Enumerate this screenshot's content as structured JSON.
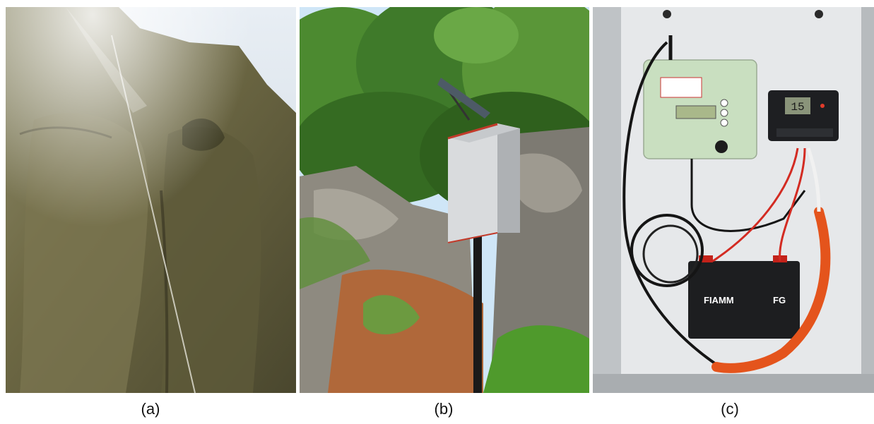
{
  "figure": {
    "panels": [
      {
        "id": "a",
        "caption": "(a)",
        "content": "cliff-photo"
      },
      {
        "id": "b",
        "caption": "(b)",
        "content": "pole-mounted-enclosure-photo"
      },
      {
        "id": "c",
        "caption": "(c)",
        "content": "open-enclosure-electronics-photo"
      }
    ],
    "device": {
      "lcd_reading": "15",
      "battery_brand": "FIAMM",
      "battery_series": "FG"
    },
    "colors": {
      "rock": "#6f6a45",
      "foliage": "#3f7a2a",
      "sky": "#cfe6f7",
      "enclosure": "#e6e8ea",
      "logger_green": "#c9dfc0",
      "cable_orange": "#e4541c"
    }
  }
}
